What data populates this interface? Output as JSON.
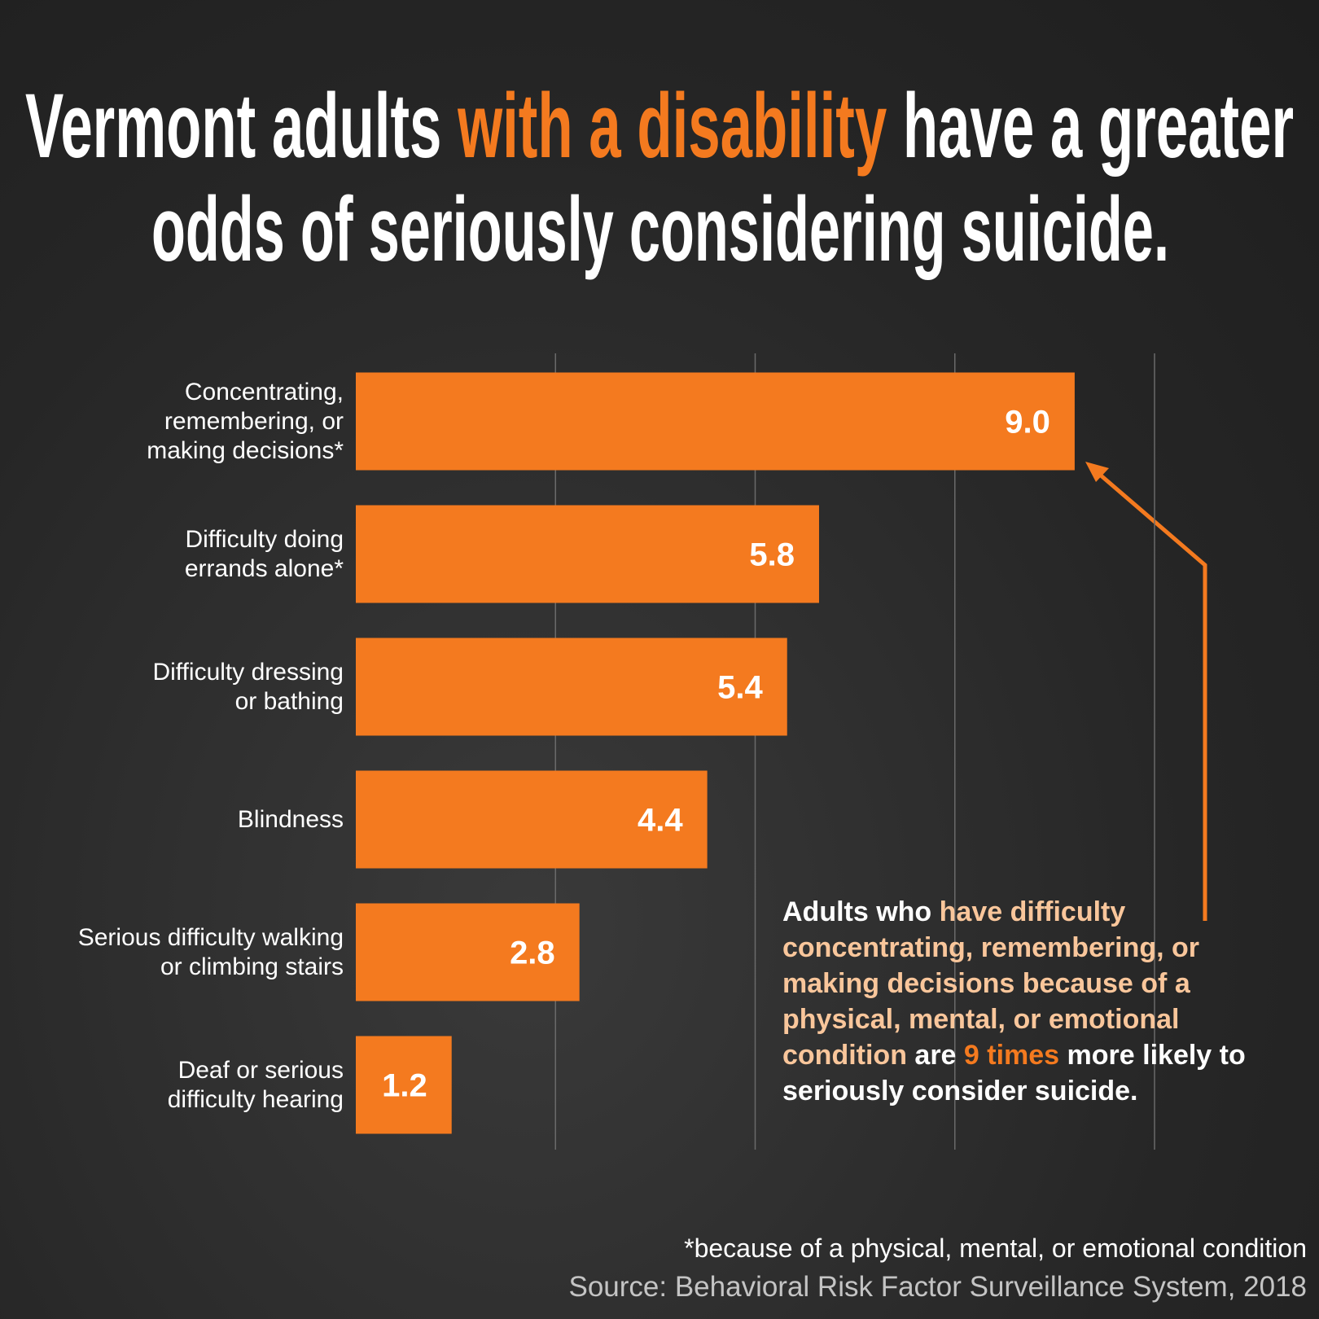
{
  "chart_data": {
    "type": "barh",
    "title": [
      "Vermont adults ",
      "with a disability",
      " have a greater",
      "odds of seriously considering suicide."
    ],
    "title_colors": [
      "#ffffff",
      "#f47a1f",
      "#ffffff",
      "#ffffff"
    ],
    "categories": [
      "Concentrating,\nremembering, or\nmaking decisions*",
      "Difficulty doing\nerrands alone*",
      "Difficulty dressing\nor bathing",
      "Blindness",
      "Serious difficulty walking\nor climbing stairs",
      "Deaf or serious\ndifficulty hearing"
    ],
    "values": [
      9.0,
      5.8,
      5.4,
      4.4,
      2.8,
      1.2
    ],
    "value_labels": [
      "9.0",
      "5.8",
      "5.4",
      "4.4",
      "2.8",
      "1.2"
    ],
    "color": "#f47a1f",
    "xlim": [
      0,
      10
    ],
    "xticks": [
      2.5,
      5,
      7.5,
      10
    ],
    "grid": true,
    "annotation": [
      {
        "text": "Adults who ",
        "color": "#ffffff"
      },
      {
        "text": "have difficulty concentrating, remembering, or making decisions because of a physical, mental, or emotional condition",
        "color": "#f9c69b"
      },
      {
        "text": " are ",
        "color": "#ffffff"
      },
      {
        "text": "9 times",
        "color": "#f47a1f"
      },
      {
        "text": " more likely to seriously consider suicide.",
        "color": "#ffffff"
      }
    ],
    "footnote": "*because of a physical, mental, or emotional condition",
    "source": "Source: Behavioral Risk Factor Surveillance System, 2018"
  }
}
